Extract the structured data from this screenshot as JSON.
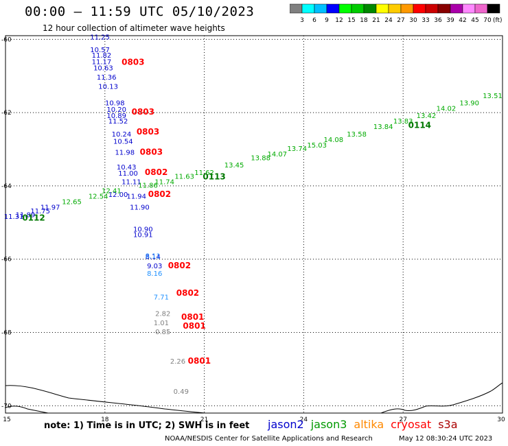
{
  "header": {
    "title": "00:00  –  11:59 UTC 05/10/2023",
    "subtitle": "12 hour collection of altimeter wave heights"
  },
  "colorbar": {
    "colors": [
      "#808080",
      "#00ffff",
      "#00bfff",
      "#0000ff",
      "#00ff00",
      "#00cc00",
      "#008800",
      "#ffff00",
      "#ffcc00",
      "#ff9900",
      "#ff0000",
      "#cc0000",
      "#880000",
      "#aa00aa",
      "#ff88ff",
      "#ee66cc",
      "#000000"
    ],
    "labels": [
      "3",
      "6",
      "9",
      "12",
      "15",
      "18",
      "21",
      "24",
      "27",
      "30",
      "33",
      "36",
      "39",
      "42",
      "45",
      "70"
    ],
    "unit": "(ft)"
  },
  "map": {
    "lon_ticks": [
      "15",
      "18",
      "21",
      "24",
      "27",
      "30"
    ],
    "lat_ticks": [
      "-60",
      "-62",
      "-64",
      "-66",
      "-68",
      "-70"
    ]
  },
  "chart_data": {
    "type": "scatter",
    "xlabel": "",
    "ylabel": "",
    "xlim": [
      15,
      30
    ],
    "ylim": [
      -70.2,
      -59.9
    ],
    "series": [
      {
        "name": "jason2",
        "color": "#0000cc",
        "points": [
          {
            "x": 17.85,
            "y": -60.0,
            "v": "11.25"
          },
          {
            "x": 17.85,
            "y": -60.35,
            "v": "10.57"
          },
          {
            "x": 17.9,
            "y": -60.5,
            "v": "11.82"
          },
          {
            "x": 17.9,
            "y": -60.68,
            "v": "11.17"
          },
          {
            "x": 17.95,
            "y": -60.85,
            "v": "10.63"
          },
          {
            "x": 18.05,
            "y": -61.1,
            "v": "11.36"
          },
          {
            "x": 18.1,
            "y": -61.35,
            "v": "10.13"
          },
          {
            "x": 18.3,
            "y": -61.8,
            "v": "10.98"
          },
          {
            "x": 18.35,
            "y": -61.98,
            "v": "10.20"
          },
          {
            "x": 18.35,
            "y": -62.15,
            "v": "10.89"
          },
          {
            "x": 18.4,
            "y": -62.3,
            "v": "11.52"
          },
          {
            "x": 18.5,
            "y": -62.65,
            "v": "10.24"
          },
          {
            "x": 18.55,
            "y": -62.85,
            "v": "10.54"
          },
          {
            "x": 18.6,
            "y": -63.15,
            "v": "11.98"
          },
          {
            "x": 18.65,
            "y": -63.55,
            "v": "10.43"
          },
          {
            "x": 18.7,
            "y": -63.72,
            "v": "11.00"
          },
          {
            "x": 18.8,
            "y": -63.95,
            "v": "11.11"
          },
          {
            "x": 18.4,
            "y": -64.3,
            "v": "12.00"
          },
          {
            "x": 18.95,
            "y": -64.35,
            "v": "11.94"
          },
          {
            "x": 19.05,
            "y": -64.65,
            "v": "11.90"
          },
          {
            "x": 19.15,
            "y": -65.25,
            "v": "10.90"
          },
          {
            "x": 19.15,
            "y": -65.4,
            "v": "10.91"
          },
          {
            "x": 19.45,
            "y": -66.0,
            "v": "8.14"
          },
          {
            "x": 19.5,
            "y": -66.25,
            "v": "9.03"
          },
          {
            "x": 15.25,
            "y": -64.9,
            "v": "11.31"
          },
          {
            "x": 15.6,
            "y": -64.85,
            "v": "11.89"
          },
          {
            "x": 16.05,
            "y": -64.75,
            "v": "11.75"
          },
          {
            "x": 16.35,
            "y": -64.65,
            "v": "11.97"
          }
        ]
      },
      {
        "name": "jason3",
        "color": "#00aa00",
        "points": [
          {
            "x": 17.0,
            "y": -64.5,
            "v": "12.65"
          },
          {
            "x": 17.8,
            "y": -64.35,
            "v": "12.54"
          },
          {
            "x": 18.2,
            "y": -64.2,
            "v": "12.41"
          },
          {
            "x": 19.3,
            "y": -64.05,
            "v": "11.86"
          },
          {
            "x": 19.8,
            "y": -63.95,
            "v": "11.74"
          },
          {
            "x": 20.4,
            "y": -63.8,
            "v": "11.63"
          },
          {
            "x": 21.0,
            "y": -63.7,
            "v": "11.62"
          },
          {
            "x": 21.9,
            "y": -63.5,
            "v": "13.45"
          },
          {
            "x": 22.7,
            "y": -63.3,
            "v": "13.88"
          },
          {
            "x": 23.2,
            "y": -63.2,
            "v": "14.07"
          },
          {
            "x": 23.8,
            "y": -63.05,
            "v": "13.74"
          },
          {
            "x": 24.4,
            "y": -62.95,
            "v": "15.03"
          },
          {
            "x": 24.9,
            "y": -62.8,
            "v": "14.08"
          },
          {
            "x": 25.6,
            "y": -62.65,
            "v": "13.58"
          },
          {
            "x": 26.4,
            "y": -62.45,
            "v": "13.84"
          },
          {
            "x": 27.0,
            "y": -62.3,
            "v": "13.83"
          },
          {
            "x": 27.7,
            "y": -62.15,
            "v": "13.42"
          },
          {
            "x": 28.3,
            "y": -61.95,
            "v": "14.02"
          },
          {
            "x": 29.0,
            "y": -61.8,
            "v": "13.90"
          },
          {
            "x": 29.7,
            "y": -61.6,
            "v": "13.51"
          }
        ]
      },
      {
        "name": "altika",
        "color": "#ff8800",
        "points": []
      },
      {
        "name": "cryosat",
        "color": "#1e90ff",
        "points": [
          {
            "x": 19.45,
            "y": -65.98,
            "v": "8.11"
          },
          {
            "x": 19.5,
            "y": -66.45,
            "v": "8.16"
          },
          {
            "x": 19.7,
            "y": -67.1,
            "v": "7.71"
          }
        ]
      },
      {
        "name": "s3a",
        "color": "#808080",
        "points": [
          {
            "x": 19.75,
            "y": -67.55,
            "v": "2.82"
          },
          {
            "x": 19.7,
            "y": -67.8,
            "v": "1.01"
          },
          {
            "x": 19.75,
            "y": -68.05,
            "v": "0.85"
          },
          {
            "x": 20.2,
            "y": -68.85,
            "v": "2.26"
          },
          {
            "x": 20.3,
            "y": -69.68,
            "v": "0.49"
          }
        ]
      }
    ],
    "time_labels": [
      {
        "x": 18.85,
        "y": -60.7,
        "text": "0803",
        "color": "#ff0000"
      },
      {
        "x": 19.15,
        "y": -62.05,
        "text": "0803",
        "color": "#ff0000"
      },
      {
        "x": 19.3,
        "y": -62.6,
        "text": "0803",
        "color": "#ff0000"
      },
      {
        "x": 19.4,
        "y": -63.15,
        "text": "0803",
        "color": "#ff0000"
      },
      {
        "x": 19.55,
        "y": -63.7,
        "text": "0802",
        "color": "#ff0000"
      },
      {
        "x": 19.65,
        "y": -64.3,
        "text": "0802",
        "color": "#ff0000"
      },
      {
        "x": 20.25,
        "y": -66.25,
        "text": "0802",
        "color": "#ff0000"
      },
      {
        "x": 20.5,
        "y": -67.0,
        "text": "0802",
        "color": "#ff0000"
      },
      {
        "x": 20.65,
        "y": -67.65,
        "text": "0801",
        "color": "#ff0000"
      },
      {
        "x": 20.7,
        "y": -67.9,
        "text": "0801",
        "color": "#ff0000"
      },
      {
        "x": 20.85,
        "y": -68.85,
        "text": "0801",
        "color": "#ff0000"
      },
      {
        "x": 15.85,
        "y": -64.95,
        "text": "0112",
        "color": "#007700"
      },
      {
        "x": 21.3,
        "y": -63.82,
        "text": "0113",
        "color": "#007700"
      },
      {
        "x": 27.5,
        "y": -62.42,
        "text": "0114",
        "color": "#007700"
      }
    ]
  },
  "legend": {
    "items": [
      {
        "label": "jason2",
        "color": "#0000cc"
      },
      {
        "label": "jason3",
        "color": "#009900"
      },
      {
        "label": "altika",
        "color": "#ff8800"
      },
      {
        "label": "cryosat",
        "color": "#ff0000"
      },
      {
        "label": "s3a",
        "color": "#aa0000"
      }
    ]
  },
  "footer": {
    "note": "note:  1) Time is in UTC;  2) SWH is in feet",
    "credit": "NOAA/NESDIS Center for Satellite Applications and Research",
    "stamp": "May 12 08:30:24 UTC 2023"
  }
}
